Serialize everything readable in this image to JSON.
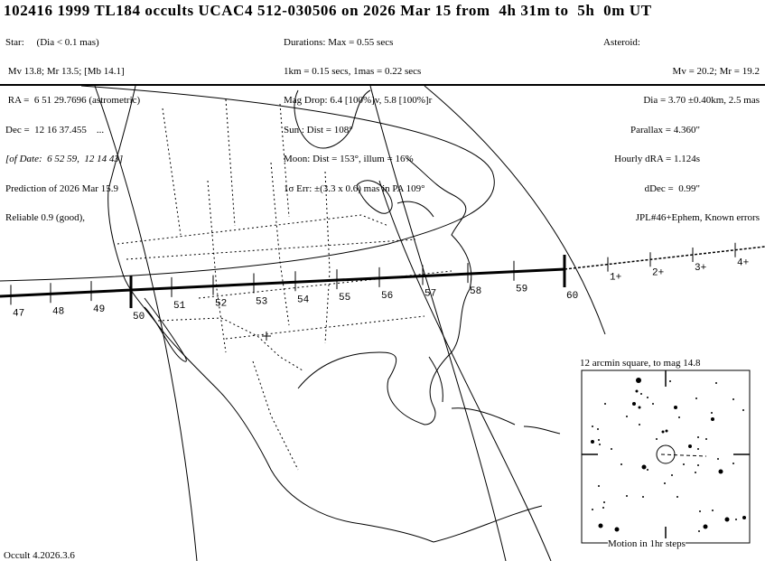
{
  "title": "102416 1999 TL184 occults UCAC4 512-030506 on 2026 Mar 15 from  4h 31m to  5h  0m UT",
  "star": {
    "lines": [
      "Star:     (Dia < 0.1 mas)",
      " Mv 13.8; Mr 13.5; [Mb 14.1]",
      " RA =  6 51 29.7696 (astrometric)",
      "Dec =  12 16 37.455    ...",
      "[of Date:  6 52 59,  12 14 43]",
      "Prediction of 2026 Mar 15.9",
      "Reliable 0.9 (good),"
    ]
  },
  "event": {
    "lines": [
      "Durations: Max = 0.55 secs",
      "1km = 0.15 secs, 1mas = 0.22 secs",
      "Mag Drop: 6.4 [100%]v, 5.8 [100%]r",
      "Sun : Dist = 108°",
      "Moon: Dist = 153°, illum = 16%",
      "1σ Err: ±(3.3 x 0.6) mas in PA 109°"
    ]
  },
  "asteroid": {
    "lines": [
      "Asteroid:",
      "Mv = 20.2; Mr = 19.2",
      "Dia = 3.70 ±0.40km, 2.5 mas",
      "Parallax = 4.360\"",
      "Hourly dRA = 1.124s",
      "dDec =  0.99\"",
      "JPL#46+Ephem, Known errors"
    ]
  },
  "path": {
    "minute_labels": [
      "47",
      "48",
      "49",
      "50",
      "51",
      "52",
      "53",
      "54",
      "55",
      "56",
      "57",
      "58",
      "59",
      "60"
    ],
    "after_labels": [
      "1+",
      "2+",
      "3+",
      "4+"
    ]
  },
  "inset": {
    "title": "12 arcmin square, to mag 14.8",
    "caption": "Motion in 1hr steps"
  },
  "footer": "Occult 4.2026.3.6",
  "colors": {
    "ink": "#000000",
    "background": "#ffffff"
  }
}
